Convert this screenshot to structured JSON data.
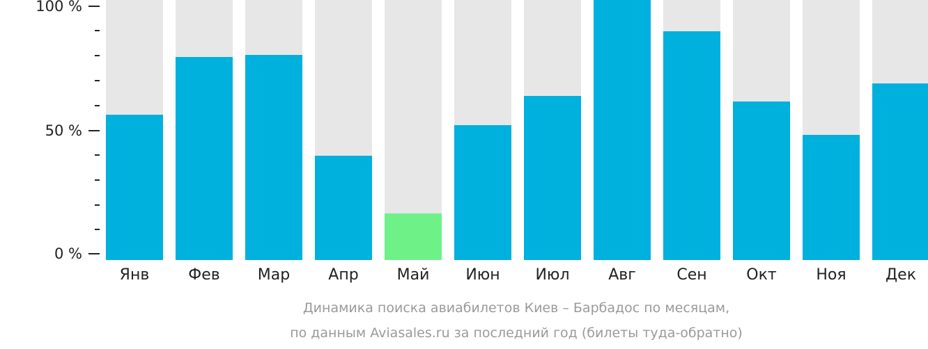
{
  "chart_data": {
    "type": "bar",
    "title": "Динамика поиска авиабилетов Киев – Барбадос по месяцам, по данным Aviasales.ru за последний год (билеты туда-обратно)",
    "xlabel": "",
    "ylabel": "",
    "ylim": [
      0,
      100
    ],
    "categories": [
      "Янв",
      "Фев",
      "Мар",
      "Апр",
      "Май",
      "Июн",
      "Июл",
      "Авг",
      "Сен",
      "Окт",
      "Ноя",
      "Дек"
    ],
    "values": [
      56,
      78,
      79,
      40,
      18,
      52,
      63,
      100,
      88,
      61,
      48,
      68
    ],
    "yticks": [
      "0 %",
      "50 %",
      "100 %"
    ],
    "highlight": {
      "category": "Май",
      "color": "#6ef288"
    },
    "colors": {
      "bar": "#00b0dd",
      "background_bar": "#e7e7e8",
      "highlight": "#6ef288"
    },
    "grid": false,
    "legend": null
  },
  "axis": {
    "y_label_0": "0 %",
    "y_label_50": "50 %",
    "y_label_100": "100 %"
  },
  "caption": {
    "line1": "Динамика поиска авиабилетов Киев – Барбадос по месяцам,",
    "line2": "по данным Aviasales.ru за последний год (билеты туда-обратно)"
  }
}
